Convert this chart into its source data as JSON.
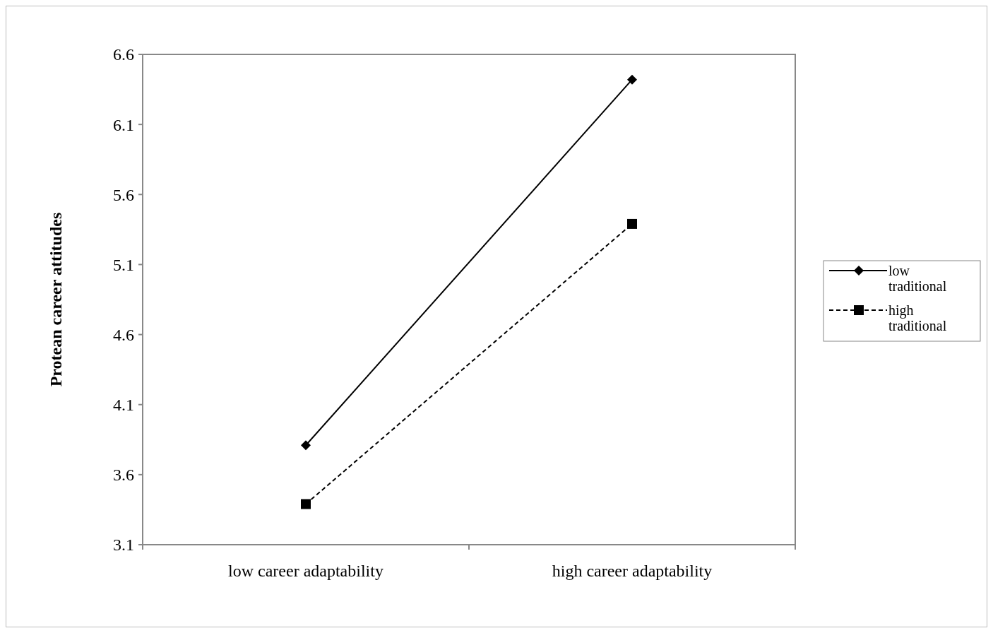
{
  "chart_data": {
    "type": "line",
    "ylabel": "Protean career attitudes",
    "categories": [
      "low career adaptability",
      "high career adaptability"
    ],
    "ylim": [
      3.1,
      6.6
    ],
    "yticks": [
      3.1,
      3.6,
      4.1,
      4.6,
      5.1,
      5.6,
      6.1,
      6.6
    ],
    "grid": false,
    "legend": "right",
    "series": [
      {
        "name": "low traditional",
        "color": "#000000",
        "values": [
          3.81,
          6.42
        ],
        "marker": "diamond",
        "line_style": "solid"
      },
      {
        "name": "high traditional",
        "color": "#000000",
        "values": [
          3.39,
          5.39
        ],
        "marker": "square",
        "line_style": "dashed"
      }
    ]
  }
}
